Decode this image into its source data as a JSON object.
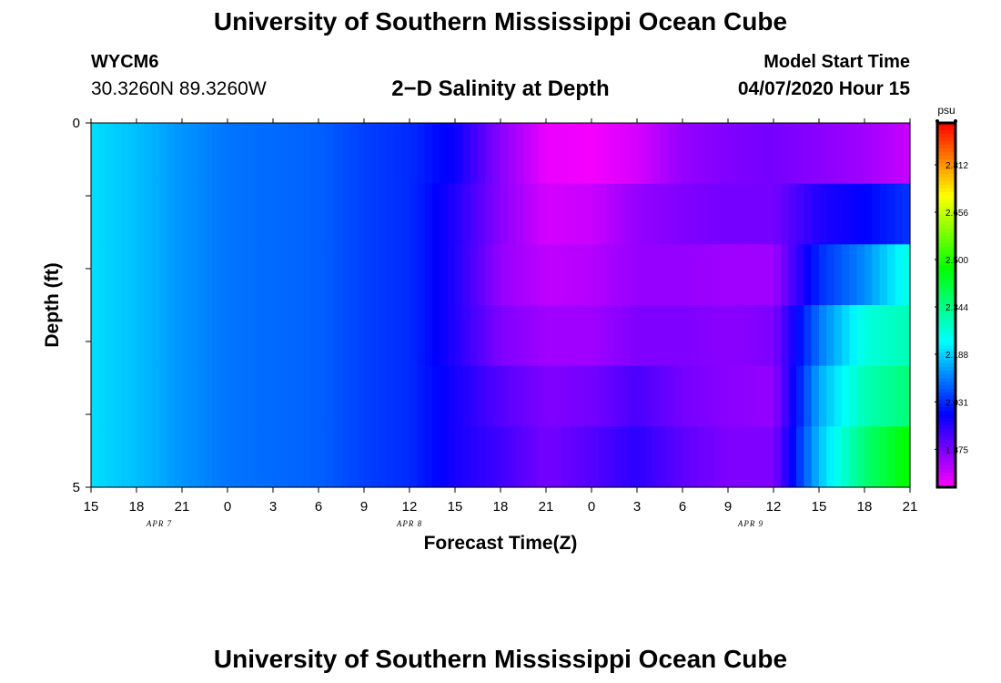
{
  "header": {
    "title": "University of Southern Mississippi Ocean Cube",
    "footer_title": "University of Southern Mississippi Ocean Cube",
    "station": "WYCM6",
    "coords": "30.3260N 89.3260W",
    "plot_title": "2−D Salinity at Depth",
    "model_start_label": "Model Start Time",
    "model_start_value": "04/07/2020 Hour 15"
  },
  "chart_data": {
    "type": "heatmap",
    "title": "2−D Salinity at Depth",
    "xlabel": "Forecast Time(Z)",
    "ylabel": "Depth (ft)",
    "x_start": "04/07/2020 Hour 15",
    "x_hours": [
      0,
      3,
      6,
      9,
      12,
      15,
      18,
      21,
      24,
      27,
      30,
      33,
      36,
      39,
      42,
      45,
      48,
      51,
      54
    ],
    "xticks": [
      "15",
      "18",
      "21",
      "0",
      "3",
      "6",
      "9",
      "12",
      "15",
      "18",
      "21",
      "0",
      "3",
      "6",
      "9",
      "12",
      "15",
      "18",
      "21"
    ],
    "date_labels": [
      {
        "text": "APR 7",
        "hour": 4.5
      },
      {
        "text": "APR 8",
        "hour": 21
      },
      {
        "text": "APR 9",
        "hour": 43.5
      }
    ],
    "yticks": [
      "0",
      "5"
    ],
    "ylim": [
      0,
      5
    ],
    "depth_levels": [
      0,
      1,
      2,
      3,
      4,
      5
    ],
    "colorbar": {
      "unit": "psu",
      "min": 1.75,
      "max": 2.95,
      "ticks": [
        "2.812",
        "2.656",
        "2.500",
        "2.344",
        "2.188",
        "2.031",
        "1.875"
      ]
    },
    "layers": [
      {
        "points": [
          [
            0,
            2.2
          ],
          [
            3,
            2.17
          ],
          [
            6,
            2.13
          ],
          [
            9,
            2.1
          ],
          [
            12,
            2.09
          ],
          [
            15,
            2.08
          ],
          [
            18,
            2.05
          ],
          [
            21,
            2.03
          ],
          [
            24,
            1.98
          ],
          [
            27,
            1.86
          ],
          [
            30,
            1.77
          ],
          [
            33,
            1.76
          ],
          [
            36,
            1.79
          ],
          [
            39,
            1.85
          ],
          [
            42,
            1.87
          ],
          [
            45,
            1.88
          ],
          [
            48,
            1.86
          ],
          [
            51,
            1.84
          ],
          [
            54,
            1.8
          ]
        ]
      },
      {
        "points": [
          [
            0,
            2.2
          ],
          [
            3,
            2.17
          ],
          [
            6,
            2.13
          ],
          [
            9,
            2.1
          ],
          [
            12,
            2.09
          ],
          [
            15,
            2.08
          ],
          [
            18,
            2.05
          ],
          [
            21,
            2.03
          ],
          [
            24,
            1.96
          ],
          [
            27,
            1.86
          ],
          [
            30,
            1.79
          ],
          [
            33,
            1.8
          ],
          [
            36,
            1.85
          ],
          [
            39,
            1.87
          ],
          [
            42,
            1.88
          ],
          [
            45,
            1.88
          ],
          [
            48,
            1.96
          ],
          [
            51,
            1.99
          ],
          [
            54,
            2.04
          ]
        ]
      },
      {
        "points": [
          [
            0,
            2.2
          ],
          [
            3,
            2.17
          ],
          [
            6,
            2.13
          ],
          [
            9,
            2.1
          ],
          [
            12,
            2.09
          ],
          [
            15,
            2.08
          ],
          [
            18,
            2.05
          ],
          [
            21,
            2.03
          ],
          [
            24,
            1.96
          ],
          [
            27,
            1.85
          ],
          [
            30,
            1.81
          ],
          [
            33,
            1.82
          ],
          [
            36,
            1.85
          ],
          [
            39,
            1.85
          ],
          [
            42,
            1.84
          ],
          [
            45,
            1.84
          ],
          [
            48,
            2.03
          ],
          [
            51,
            2.12
          ],
          [
            54,
            2.26
          ]
        ]
      },
      {
        "points": [
          [
            0,
            2.2
          ],
          [
            3,
            2.17
          ],
          [
            6,
            2.13
          ],
          [
            9,
            2.1
          ],
          [
            12,
            2.09
          ],
          [
            15,
            2.08
          ],
          [
            18,
            2.05
          ],
          [
            21,
            2.03
          ],
          [
            24,
            1.96
          ],
          [
            27,
            1.87
          ],
          [
            30,
            1.84
          ],
          [
            33,
            1.84
          ],
          [
            36,
            1.87
          ],
          [
            39,
            1.87
          ],
          [
            42,
            1.86
          ],
          [
            45,
            1.87
          ],
          [
            48,
            2.1
          ],
          [
            51,
            2.26
          ],
          [
            54,
            2.3
          ]
        ]
      },
      {
        "points": [
          [
            0,
            2.2
          ],
          [
            3,
            2.17
          ],
          [
            6,
            2.13
          ],
          [
            9,
            2.1
          ],
          [
            12,
            2.09
          ],
          [
            15,
            2.08
          ],
          [
            18,
            2.05
          ],
          [
            21,
            2.03
          ],
          [
            24,
            1.97
          ],
          [
            27,
            1.91
          ],
          [
            30,
            1.87
          ],
          [
            33,
            1.88
          ],
          [
            36,
            1.92
          ],
          [
            39,
            1.88
          ],
          [
            42,
            1.86
          ],
          [
            45,
            1.85
          ],
          [
            48,
            2.15
          ],
          [
            51,
            2.3
          ],
          [
            54,
            2.36
          ]
        ]
      },
      {
        "points": [
          [
            0,
            2.2
          ],
          [
            3,
            2.17
          ],
          [
            6,
            2.13
          ],
          [
            9,
            2.1
          ],
          [
            12,
            2.09
          ],
          [
            15,
            2.08
          ],
          [
            18,
            2.05
          ],
          [
            21,
            2.03
          ],
          [
            24,
            1.97
          ],
          [
            27,
            1.93
          ],
          [
            30,
            1.88
          ],
          [
            33,
            1.91
          ],
          [
            36,
            1.95
          ],
          [
            39,
            1.9
          ],
          [
            42,
            1.87
          ],
          [
            45,
            1.87
          ],
          [
            48,
            2.17
          ],
          [
            51,
            2.36
          ],
          [
            54,
            2.48
          ]
        ]
      }
    ]
  }
}
